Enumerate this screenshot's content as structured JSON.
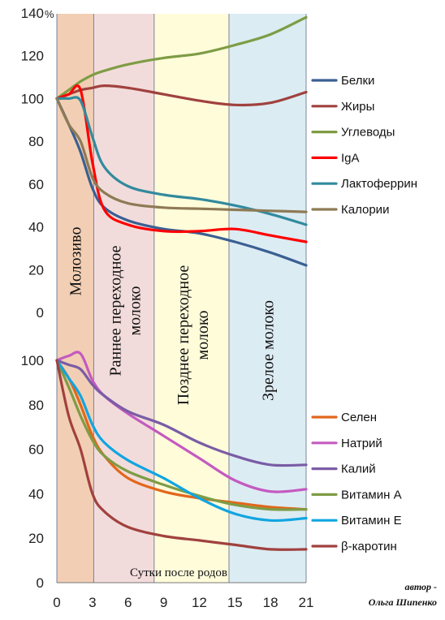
{
  "chart_data": {
    "type": "line",
    "xlabel": "Сутки после родов",
    "x_ticks": [
      "0",
      "3",
      "6",
      "9",
      "12",
      "15",
      "18",
      "21"
    ],
    "xlim": [
      0,
      21
    ],
    "phases": [
      {
        "label": "Молозиво",
        "from": 0,
        "to": 3.1,
        "color": "#F2CFB4"
      },
      {
        "label": "Раннее переходное молоко",
        "from": 3.1,
        "to": 8.2,
        "color": "#F2DCDB"
      },
      {
        "label": "Позднее переходное молоко",
        "from": 8.2,
        "to": 14.5,
        "color": "#FFFCDA"
      },
      {
        "label": "Зрелое молоко",
        "from": 14.5,
        "to": 21,
        "color": "#DCECF3"
      }
    ],
    "panels": [
      {
        "name": "top",
        "y_ticks": [
          "140%",
          "120",
          "100",
          "80",
          "60",
          "40",
          "20",
          "0"
        ],
        "ylim": [
          0,
          140
        ],
        "series": [
          {
            "name": "Белки",
            "color": "#3A5F93",
            "x": [
              0,
              1,
              2,
              3,
              4,
              6,
              9,
              12,
              15,
              18,
              21
            ],
            "y": [
              100,
              88,
              75,
              58,
              49,
              43,
              39,
              37,
              33,
              28,
              22
            ]
          },
          {
            "name": "Жиры",
            "color": "#A0413E",
            "x": [
              0,
              1,
              2,
              3,
              4,
              6,
              9,
              12,
              15,
              18,
              21
            ],
            "y": [
              100,
              102,
              104,
              105,
              106,
              105,
              102,
              99,
              97,
              98,
              103
            ]
          },
          {
            "name": "Углеводы",
            "color": "#7E9C45",
            "x": [
              0,
              1,
              2,
              3,
              4,
              6,
              9,
              12,
              15,
              18,
              21
            ],
            "y": [
              100,
              104,
              108,
              111,
              113,
              116,
              119,
              121,
              125,
              130,
              138
            ]
          },
          {
            "name": "IgA",
            "color": "#FF0000",
            "x": [
              0,
              1,
              2,
              3,
              4,
              6,
              9,
              12,
              15,
              18,
              21
            ],
            "y": [
              100,
              102,
              104,
              70,
              48,
              41,
              38,
              38,
              39,
              36,
              33
            ]
          },
          {
            "name": "Лактоферрин",
            "color": "#328A9E",
            "x": [
              0,
              1,
              2,
              3,
              4,
              6,
              9,
              12,
              15,
              18,
              21
            ],
            "y": [
              100,
              100,
              99,
              82,
              68,
              59,
              55,
              53,
              50,
              46,
              41
            ]
          },
          {
            "name": "Калории",
            "color": "#8E7A55",
            "x": [
              0,
              1,
              2,
              3,
              4,
              6,
              9,
              12,
              15,
              18,
              21
            ],
            "y": [
              100,
              88,
              80,
              63,
              56,
              51,
              49,
              48.5,
              48,
              47.5,
              47
            ]
          }
        ]
      },
      {
        "name": "bottom",
        "y_ticks": [
          "100",
          "80",
          "60",
          "40",
          "20",
          "0"
        ],
        "ylim": [
          0,
          100
        ],
        "series": [
          {
            "name": "Селен",
            "color": "#E2671B",
            "x": [
              0,
              1,
              2,
              3,
              4,
              6,
              9,
              12,
              15,
              18,
              21
            ],
            "y": [
              100,
              92,
              80,
              66,
              57,
              47,
              41,
              38,
              36,
              34,
              33
            ]
          },
          {
            "name": "Натрий",
            "color": "#C45AC0",
            "x": [
              0,
              1,
              2,
              3,
              4,
              6,
              9,
              12,
              15,
              18,
              21
            ],
            "y": [
              100,
              102,
              103,
              91,
              84,
              76,
              66,
              56,
              46,
              41,
              42
            ]
          },
          {
            "name": "Калий",
            "color": "#7A5CA5",
            "x": [
              0,
              1,
              2,
              3,
              4,
              6,
              9,
              12,
              15,
              18,
              21
            ],
            "y": [
              100,
              98,
              96,
              89,
              84,
              77,
              71,
              63,
              57,
              53,
              53
            ]
          },
          {
            "name": "Витамин А",
            "color": "#7E9C45",
            "x": [
              0,
              1,
              2,
              3,
              4,
              6,
              9,
              12,
              15,
              18,
              21
            ],
            "y": [
              100,
              88,
              75,
              64,
              57,
              50,
              44,
              39,
              35,
              33,
              33
            ]
          },
          {
            "name": "Витамин Е",
            "color": "#10A5E1",
            "x": [
              0,
              1,
              2,
              3,
              4,
              6,
              9,
              12,
              15,
              18,
              21
            ],
            "y": [
              100,
              92,
              84,
              71,
              63,
              55,
              47,
              38,
              31,
              28,
              29
            ]
          },
          {
            "name": "β-каротин",
            "color": "#A0413E",
            "x": [
              0,
              1,
              2,
              3,
              4,
              6,
              9,
              12,
              15,
              18,
              21
            ],
            "y": [
              100,
              75,
              60,
              40,
              32,
              25,
              21,
              19,
              17,
              15,
              15
            ]
          }
        ]
      }
    ]
  },
  "author": {
    "line1": "автор -",
    "line2": "Ольга Шипенко"
  }
}
